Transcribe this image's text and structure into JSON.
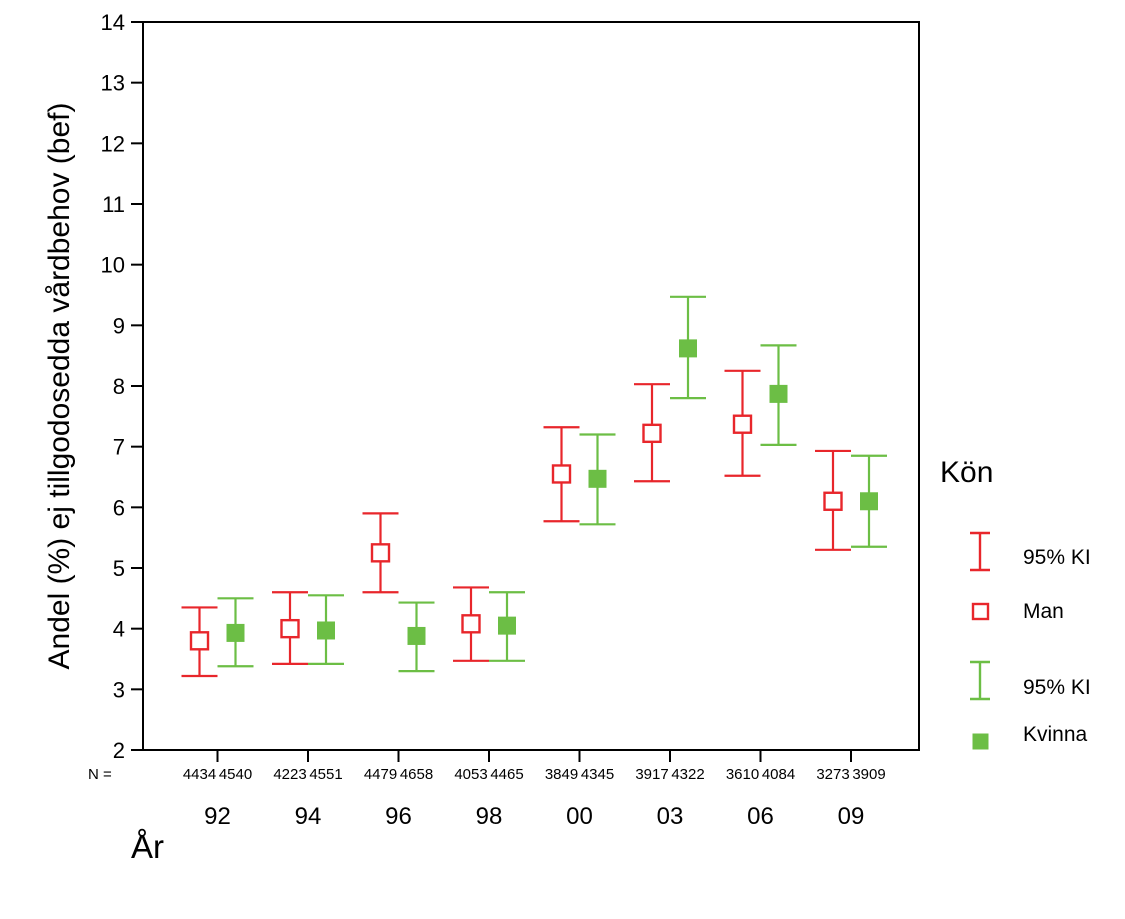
{
  "chart_data": {
    "type": "errorbar",
    "title": "",
    "xlabel": "År",
    "ylabel": "Andel (%) ej tillgodosedda vårdbehov (bef)",
    "ylim": [
      2,
      14
    ],
    "yticks": [
      "2",
      "3",
      "4",
      "5",
      "6",
      "7",
      "8",
      "9",
      "10",
      "11",
      "12",
      "13",
      "14"
    ],
    "grid": false,
    "legend_position": "right",
    "legend_title": "Kön",
    "categories": [
      "92",
      "94",
      "96",
      "98",
      "00",
      "03",
      "06",
      "09"
    ],
    "n_prefix": "N =",
    "series": [
      {
        "name": "Man",
        "ci_label": "95% KI",
        "color": "#e8262b",
        "marker": "open-square",
        "n": [
          "4434",
          "4223",
          "4479",
          "4053",
          "3849",
          "3917",
          "3610",
          "3273"
        ],
        "mean": [
          3.8,
          4.0,
          5.25,
          4.08,
          6.55,
          7.22,
          7.37,
          6.1
        ],
        "lower": [
          3.22,
          3.42,
          4.6,
          3.47,
          5.77,
          6.43,
          6.52,
          5.3
        ],
        "upper": [
          4.35,
          4.6,
          5.9,
          4.68,
          7.32,
          8.03,
          8.25,
          6.93
        ]
      },
      {
        "name": "Kvinna",
        "ci_label": "95% KI",
        "color": "#6cbe45",
        "marker": "filled-square",
        "n": [
          "4540",
          "4551",
          "4658",
          "4465",
          "4345",
          "4322",
          "4084",
          "3909"
        ],
        "mean": [
          3.93,
          3.97,
          3.88,
          4.05,
          6.47,
          8.62,
          7.87,
          6.1
        ],
        "lower": [
          3.38,
          3.42,
          3.3,
          3.47,
          5.72,
          7.8,
          7.03,
          5.35
        ],
        "upper": [
          4.5,
          4.55,
          4.43,
          4.6,
          7.2,
          9.47,
          8.67,
          6.85
        ]
      }
    ]
  }
}
